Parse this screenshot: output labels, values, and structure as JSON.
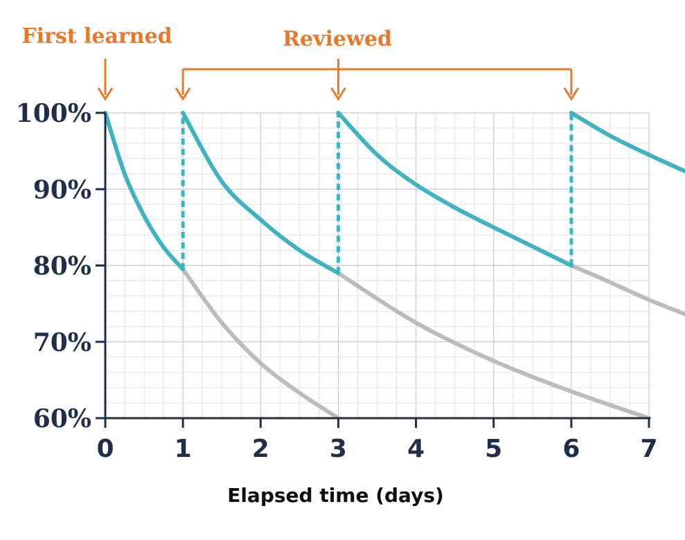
{
  "chart_data": {
    "type": "line",
    "title": "",
    "xlabel": "Elapsed time (days)",
    "ylabel": "",
    "xlim": [
      0,
      7
    ],
    "ylim": [
      60,
      100
    ],
    "x_ticks": [
      "0",
      "1",
      "2",
      "3",
      "4",
      "5",
      "6",
      "7"
    ],
    "y_ticks": [
      "60%",
      "70%",
      "80%",
      "90%",
      "100%"
    ],
    "grid": true,
    "series": [
      {
        "role": "retention-with-review",
        "color": "#3fb3bf",
        "segments": [
          {
            "x": [
              0,
              0.25,
              0.5,
              0.75,
              1
            ],
            "y": [
              100,
              92,
              86.5,
              82.4,
              79.5
            ]
          },
          {
            "x": [
              1,
              1.5,
              2,
              2.5,
              3
            ],
            "y": [
              100,
              91,
              86,
              82,
              79
            ]
          },
          {
            "x": [
              3,
              3.5,
              4,
              4.5,
              5,
              5.5,
              6
            ],
            "y": [
              100,
              94.5,
              90.6,
              87.6,
              85,
              82.5,
              80
            ]
          },
          {
            "x": [
              6,
              6.5,
              7,
              7.5
            ],
            "y": [
              100,
              97,
              94.5,
              92.2
            ]
          }
        ]
      },
      {
        "role": "retention-without-review",
        "color": "#bcbcbc",
        "segments": [
          {
            "x": [
              1,
              1.5,
              2,
              2.5,
              3
            ],
            "y": [
              79.5,
              72.5,
              67.2,
              63.3,
              60
            ]
          },
          {
            "x": [
              3,
              4,
              5,
              6,
              7
            ],
            "y": [
              79,
              72.5,
              67.5,
              63.5,
              60
            ]
          },
          {
            "x": [
              6,
              6.5,
              7,
              7.5
            ],
            "y": [
              80,
              77.8,
              75.5,
              73.5
            ]
          }
        ]
      }
    ],
    "review_markers": {
      "x": [
        1,
        3,
        6
      ],
      "from": [
        79.5,
        79,
        80
      ],
      "to": 100
    },
    "annotations": [
      {
        "text": "First learned",
        "x": [
          0
        ]
      },
      {
        "text": "Reviewed",
        "x": [
          1,
          3,
          6
        ]
      }
    ],
    "colors": {
      "accent": "#e8782a",
      "axis": "#1f2f4a"
    }
  }
}
